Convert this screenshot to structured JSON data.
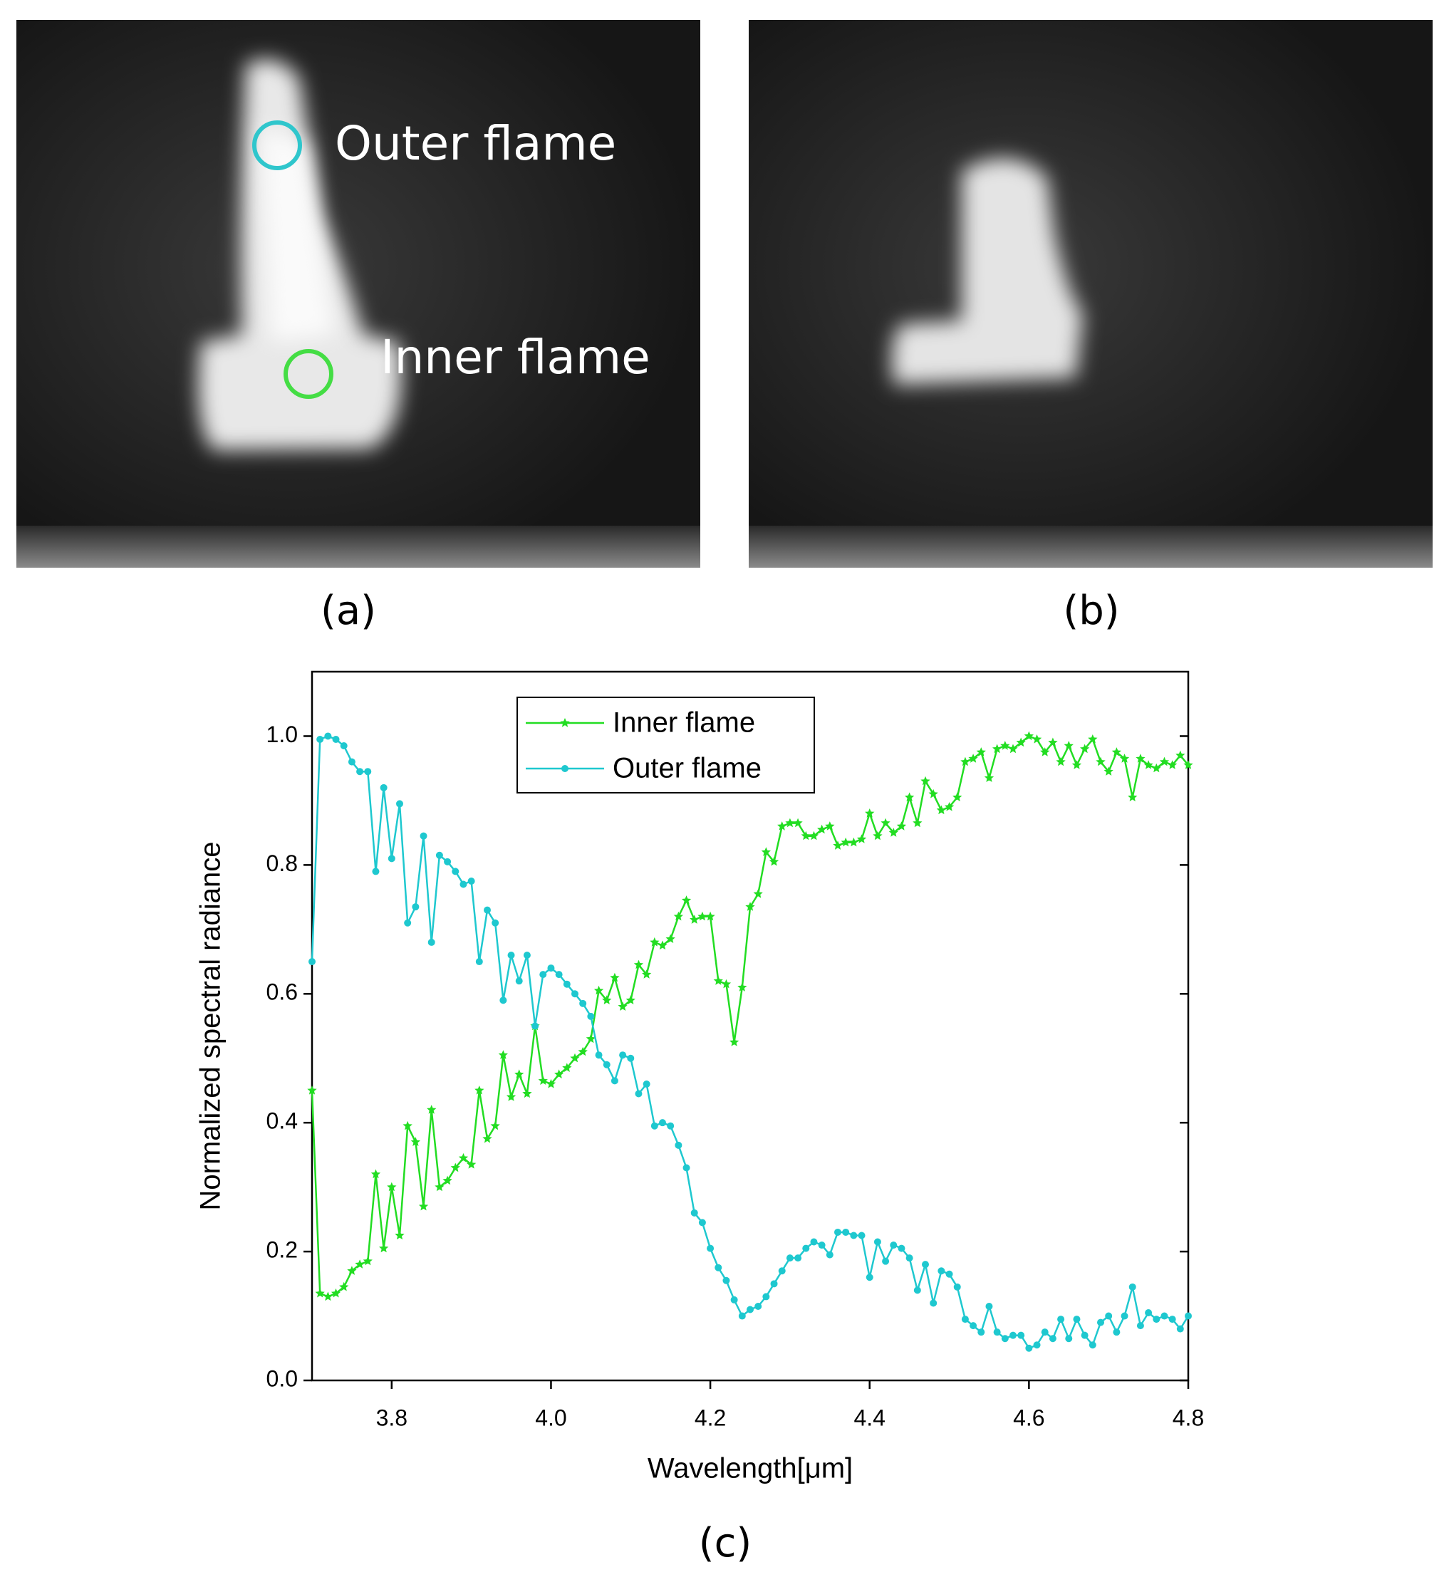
{
  "panels": [
    {
      "label": "(a)",
      "annotations": [
        "Outer flame",
        "Inner flame"
      ]
    },
    {
      "label": "(b)"
    },
    {
      "label": "(c)"
    }
  ],
  "chart_data": {
    "type": "line",
    "x_label": "Wavelength[μm]",
    "y_label": "Normalized spectral radiance",
    "x": [
      3.7,
      3.71,
      3.72,
      3.73,
      3.74,
      3.75,
      3.76,
      3.77,
      3.78,
      3.79,
      3.8,
      3.81,
      3.82,
      3.83,
      3.84,
      3.85,
      3.86,
      3.87,
      3.88,
      3.89,
      3.9,
      3.91,
      3.92,
      3.93,
      3.94,
      3.95,
      3.96,
      3.97,
      3.98,
      3.99,
      4.0,
      4.01,
      4.02,
      4.03,
      4.04,
      4.05,
      4.06,
      4.07,
      4.08,
      4.09,
      4.1,
      4.11,
      4.12,
      4.13,
      4.14,
      4.15,
      4.16,
      4.17,
      4.18,
      4.19,
      4.2,
      4.21,
      4.22,
      4.23,
      4.24,
      4.25,
      4.26,
      4.27,
      4.28,
      4.29,
      4.3,
      4.31,
      4.32,
      4.33,
      4.34,
      4.35,
      4.36,
      4.37,
      4.38,
      4.39,
      4.4,
      4.41,
      4.42,
      4.43,
      4.44,
      4.45,
      4.46,
      4.47,
      4.48,
      4.49,
      4.5,
      4.51,
      4.52,
      4.53,
      4.54,
      4.55,
      4.56,
      4.57,
      4.58,
      4.59,
      4.6,
      4.61,
      4.62,
      4.63,
      4.64,
      4.65,
      4.66,
      4.67,
      4.68,
      4.69,
      4.7,
      4.71,
      4.72,
      4.73,
      4.74,
      4.75,
      4.76,
      4.77,
      4.78,
      4.79,
      4.8
    ],
    "series": [
      {
        "name": "Inner flame",
        "color": "#22dd22",
        "marker": "star",
        "values": [
          0.45,
          0.135,
          0.13,
          0.135,
          0.145,
          0.17,
          0.18,
          0.185,
          0.32,
          0.205,
          0.3,
          0.225,
          0.395,
          0.37,
          0.27,
          0.42,
          0.3,
          0.31,
          0.33,
          0.345,
          0.335,
          0.45,
          0.375,
          0.395,
          0.505,
          0.44,
          0.475,
          0.445,
          0.55,
          0.465,
          0.46,
          0.475,
          0.485,
          0.5,
          0.51,
          0.53,
          0.605,
          0.59,
          0.625,
          0.58,
          0.59,
          0.645,
          0.63,
          0.68,
          0.675,
          0.685,
          0.72,
          0.745,
          0.715,
          0.72,
          0.72,
          0.62,
          0.615,
          0.525,
          0.61,
          0.735,
          0.755,
          0.82,
          0.805,
          0.86,
          0.865,
          0.865,
          0.845,
          0.845,
          0.855,
          0.86,
          0.83,
          0.835,
          0.835,
          0.84,
          0.88,
          0.845,
          0.865,
          0.85,
          0.86,
          0.905,
          0.865,
          0.93,
          0.91,
          0.885,
          0.89,
          0.905,
          0.96,
          0.965,
          0.975,
          0.935,
          0.98,
          0.985,
          0.98,
          0.99,
          1.0,
          0.995,
          0.975,
          0.99,
          0.96,
          0.985,
          0.955,
          0.98,
          0.995,
          0.96,
          0.945,
          0.975,
          0.965,
          0.905,
          0.965,
          0.955,
          0.95,
          0.96,
          0.955,
          0.97,
          0.955
        ]
      },
      {
        "name": "Outer flame",
        "color": "#1ec8cf",
        "marker": "circle",
        "values": [
          0.65,
          0.995,
          1.0,
          0.995,
          0.985,
          0.96,
          0.945,
          0.945,
          0.79,
          0.92,
          0.81,
          0.895,
          0.71,
          0.735,
          0.845,
          0.68,
          0.815,
          0.805,
          0.79,
          0.77,
          0.775,
          0.65,
          0.73,
          0.71,
          0.59,
          0.66,
          0.62,
          0.66,
          0.55,
          0.63,
          0.64,
          0.63,
          0.615,
          0.6,
          0.585,
          0.565,
          0.505,
          0.49,
          0.465,
          0.505,
          0.5,
          0.445,
          0.46,
          0.395,
          0.4,
          0.395,
          0.365,
          0.33,
          0.26,
          0.245,
          0.205,
          0.175,
          0.155,
          0.125,
          0.1,
          0.11,
          0.115,
          0.13,
          0.15,
          0.17,
          0.19,
          0.19,
          0.205,
          0.215,
          0.21,
          0.195,
          0.23,
          0.23,
          0.225,
          0.225,
          0.16,
          0.215,
          0.185,
          0.21,
          0.205,
          0.19,
          0.14,
          0.18,
          0.12,
          0.17,
          0.165,
          0.145,
          0.095,
          0.085,
          0.075,
          0.115,
          0.075,
          0.065,
          0.07,
          0.07,
          0.05,
          0.055,
          0.075,
          0.065,
          0.095,
          0.065,
          0.095,
          0.07,
          0.055,
          0.09,
          0.1,
          0.075,
          0.1,
          0.145,
          0.085,
          0.105,
          0.095,
          0.1,
          0.095,
          0.08,
          0.1
        ]
      }
    ],
    "xlim": [
      3.7,
      4.8
    ],
    "xticks": [
      3.8,
      {
        "value": 4.0,
        "label": "4.0"
      },
      4.2,
      4.4,
      4.6,
      4.8
    ],
    "ylim": [
      0,
      1.1
    ],
    "yticks": [
      {
        "value": 0,
        "label": "0.0"
      },
      0.2,
      0.4,
      0.6,
      0.8,
      {
        "value": 1.0,
        "label": "1.0"
      }
    ],
    "legend": "upper-center"
  }
}
